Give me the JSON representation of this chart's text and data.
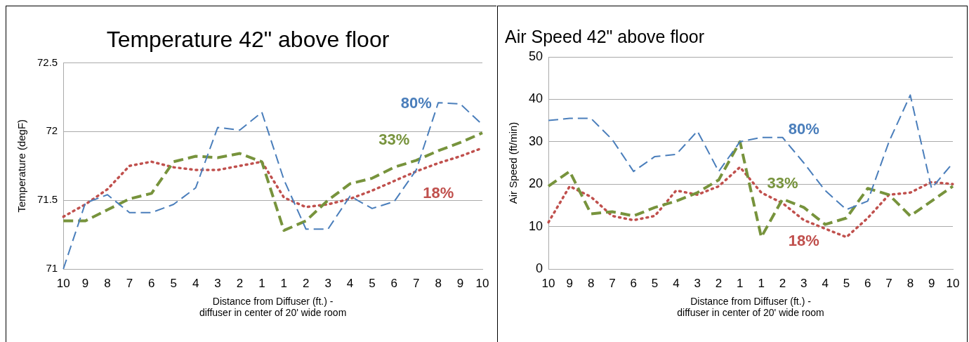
{
  "chart_data": [
    {
      "type": "line",
      "title": "Temperature 42\" above floor",
      "xlabel": "Distance from Diffuser (ft.) -\ndiffuser in center of 20' wide room",
      "ylabel": "Temperature (degF)",
      "categories": [
        "10",
        "9",
        "8",
        "7",
        "6",
        "5",
        "4",
        "3",
        "2",
        "1",
        "1",
        "2",
        "3",
        "4",
        "5",
        "6",
        "7",
        "8",
        "9",
        "10"
      ],
      "ylim": [
        71,
        72.5
      ],
      "yticks": [
        71,
        71.5,
        72,
        72.5
      ],
      "grid": "y",
      "legend": false,
      "marker": "none",
      "series": [
        {
          "name": "80%",
          "color": "#4a7ebb",
          "line_style": "dashed",
          "values": [
            71.0,
            71.48,
            71.54,
            71.41,
            71.41,
            71.47,
            71.59,
            72.03,
            72.01,
            72.14,
            71.65,
            71.29,
            71.29,
            71.53,
            71.44,
            71.49,
            71.72,
            72.21,
            72.2,
            72.05
          ]
        },
        {
          "name": "33%",
          "color": "#77933c",
          "line_style": "dashed",
          "values": [
            71.35,
            71.35,
            71.43,
            71.51,
            71.55,
            71.78,
            71.82,
            71.81,
            71.84,
            71.78,
            71.28,
            71.35,
            71.5,
            71.62,
            71.66,
            71.74,
            71.79,
            71.86,
            71.92,
            71.99
          ]
        },
        {
          "name": "18%",
          "color": "#c0504d",
          "line_style": "dotted",
          "values": [
            71.38,
            71.47,
            71.58,
            71.75,
            71.78,
            71.74,
            71.72,
            71.72,
            71.75,
            71.78,
            71.52,
            71.45,
            71.47,
            71.51,
            71.57,
            71.64,
            71.71,
            71.77,
            71.82,
            71.88
          ]
        }
      ]
    },
    {
      "type": "line",
      "title": "Air Speed 42\" above floor",
      "xlabel": "Distance from Diffuser (ft.) -\ndiffuser in center of 20' wide room",
      "ylabel": "Air Speed (ft/min)",
      "categories": [
        "10",
        "9",
        "8",
        "7",
        "6",
        "5",
        "4",
        "3",
        "2",
        "1",
        "1",
        "2",
        "3",
        "4",
        "5",
        "6",
        "7",
        "8",
        "9",
        "10"
      ],
      "ylim": [
        0,
        50
      ],
      "yticks": [
        0,
        10,
        20,
        30,
        40,
        50
      ],
      "grid": "y",
      "legend": false,
      "marker": "none",
      "series": [
        {
          "name": "80%",
          "color": "#4a7ebb",
          "line_style": "dashed",
          "values": [
            35,
            35.5,
            35.5,
            30.5,
            23,
            26.5,
            27,
            32.5,
            23,
            30,
            31,
            31,
            25,
            18.5,
            14,
            16,
            30,
            41,
            19,
            25
          ]
        },
        {
          "name": "33%",
          "color": "#77933c",
          "line_style": "dashed",
          "values": [
            19.5,
            23,
            13,
            13.5,
            12.5,
            14.5,
            16,
            18,
            21,
            30,
            7.5,
            16.5,
            14.5,
            10.5,
            12,
            19,
            17.5,
            12.5,
            16,
            19.5
          ]
        },
        {
          "name": "18%",
          "color": "#c0504d",
          "line_style": "dotted",
          "values": [
            11,
            19.5,
            17,
            12.5,
            11.5,
            12.5,
            18.5,
            17.5,
            19.5,
            24,
            18,
            15.5,
            11.5,
            9.5,
            7.5,
            12,
            17.5,
            18,
            20.5,
            20
          ]
        }
      ]
    }
  ]
}
